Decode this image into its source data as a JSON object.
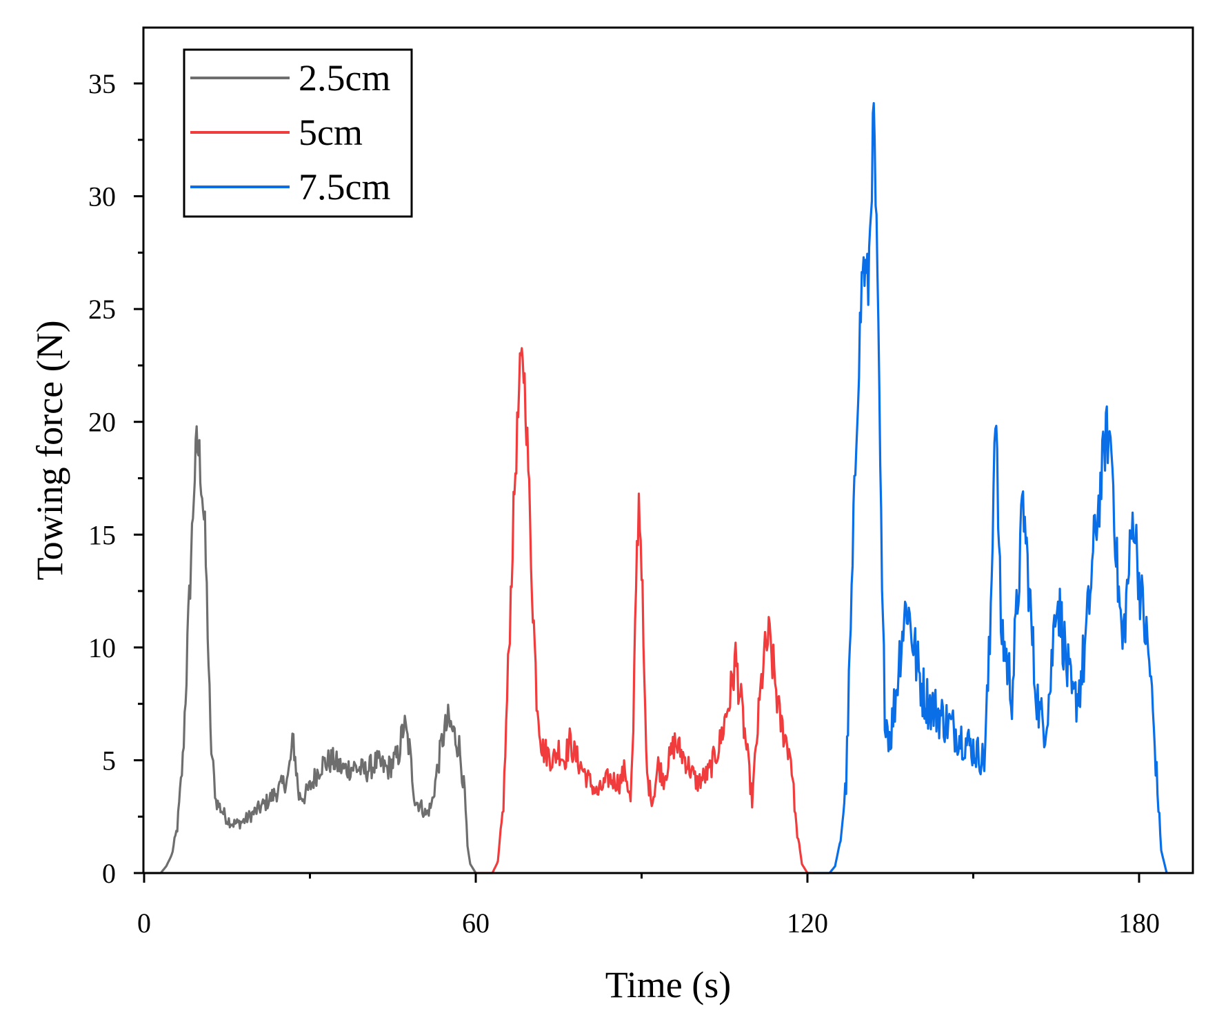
{
  "chart_data": {
    "type": "line",
    "title": "",
    "xlabel": "Time (s)",
    "ylabel": "Towing force (N)",
    "xlim": [
      0,
      190
    ],
    "ylim": [
      0,
      37.5
    ],
    "xticks": [
      0,
      60,
      120,
      180
    ],
    "yticks": [
      0,
      5,
      10,
      15,
      20,
      25,
      30,
      35
    ],
    "x_minor_step": 30,
    "y_minor_step": 2.5,
    "grid": false,
    "legend_position": "top-left",
    "series": [
      {
        "name": "2.5cm",
        "color": "#6e6e6e",
        "x": [
          0,
          3,
          4,
          5,
          6,
          7,
          8,
          9,
          9.5,
          10,
          10.5,
          11,
          11.5,
          12,
          13,
          14,
          15,
          16,
          17,
          18,
          20,
          22,
          24,
          26,
          27,
          28,
          29,
          30,
          32,
          34,
          36,
          38,
          40,
          42,
          44,
          46,
          47,
          48,
          49,
          50,
          51,
          52,
          53,
          54,
          55,
          56,
          57,
          58,
          58.5,
          59,
          60
        ],
        "y": [
          0,
          0,
          0.3,
          0.8,
          2,
          5,
          11,
          17,
          19,
          18.5,
          17,
          15,
          11,
          6,
          3.2,
          2.8,
          2.4,
          2.2,
          2.2,
          2.3,
          2.7,
          3.1,
          3.6,
          4.2,
          5.9,
          3.4,
          3.4,
          3.8,
          4.8,
          5.0,
          4.6,
          4.7,
          4.5,
          4.9,
          4.6,
          5.2,
          6.6,
          5.5,
          3.2,
          3.0,
          2.6,
          3.0,
          4.5,
          6.0,
          6.7,
          6.2,
          5.6,
          3.5,
          1.2,
          0.4,
          0
        ]
      },
      {
        "name": "5cm",
        "color": "#f03c3c",
        "x": [
          60,
          63,
          64,
          65,
          66,
          67,
          68,
          68.5,
          69,
          69.5,
          70,
          71,
          72,
          73,
          74,
          75,
          76,
          77,
          78,
          80,
          82,
          84,
          86,
          87,
          88,
          88.5,
          89,
          89.5,
          90,
          90.5,
          91,
          92,
          93,
          94,
          96,
          98,
          100,
          102,
          104,
          106,
          107,
          108,
          109,
          110,
          111,
          112,
          113,
          114,
          115,
          116,
          117,
          118,
          119,
          120,
          121
        ],
        "y": [
          0,
          0,
          0.5,
          3,
          10,
          17,
          22,
          23,
          21,
          18,
          14,
          8,
          5.5,
          5.3,
          5.0,
          5.5,
          5.0,
          5.8,
          5.2,
          4.3,
          3.5,
          4.2,
          4.0,
          4.6,
          3.2,
          6,
          13,
          16.6,
          14,
          8,
          4.2,
          3.2,
          4.8,
          4.2,
          5.8,
          5.0,
          4.0,
          4.4,
          5.6,
          7.8,
          9.5,
          7.5,
          5.5,
          3.2,
          6.5,
          9.3,
          10.5,
          8.8,
          6.8,
          6.0,
          5.2,
          2,
          0.4,
          0,
          0
        ]
      },
      {
        "name": "7.5cm",
        "color": "#0a6ee6",
        "x": [
          121,
          124,
          125,
          126,
          127,
          128,
          129,
          130,
          131,
          131.5,
          132,
          132.5,
          133,
          133.5,
          134,
          134.5,
          135,
          136,
          137,
          138,
          139,
          140,
          141,
          142,
          144,
          146,
          148,
          150,
          152,
          153,
          154,
          155,
          156,
          157,
          158,
          159,
          160,
          161,
          162,
          163,
          164,
          165,
          166,
          167,
          168,
          169,
          170,
          171,
          172,
          173,
          174,
          175,
          176,
          177,
          178,
          179,
          180,
          181,
          182,
          183,
          184,
          185
        ],
        "y": [
          0,
          0,
          0.3,
          1.5,
          4,
          12,
          21,
          27,
          26,
          30,
          33.5,
          28,
          21,
          12,
          7.5,
          6.5,
          6.0,
          8.0,
          10.5,
          12.0,
          10.5,
          9.0,
          8.0,
          7.5,
          7.0,
          6.5,
          6.0,
          5.5,
          5.0,
          10,
          21,
          11,
          9.5,
          8,
          12,
          16.5,
          13,
          9,
          7,
          6.5,
          8.5,
          12.5,
          11,
          9,
          7.5,
          8,
          9.5,
          12,
          15,
          17,
          19.5,
          19,
          13.5,
          10,
          13,
          16,
          13,
          11,
          9,
          5,
          1,
          0
        ]
      }
    ]
  }
}
